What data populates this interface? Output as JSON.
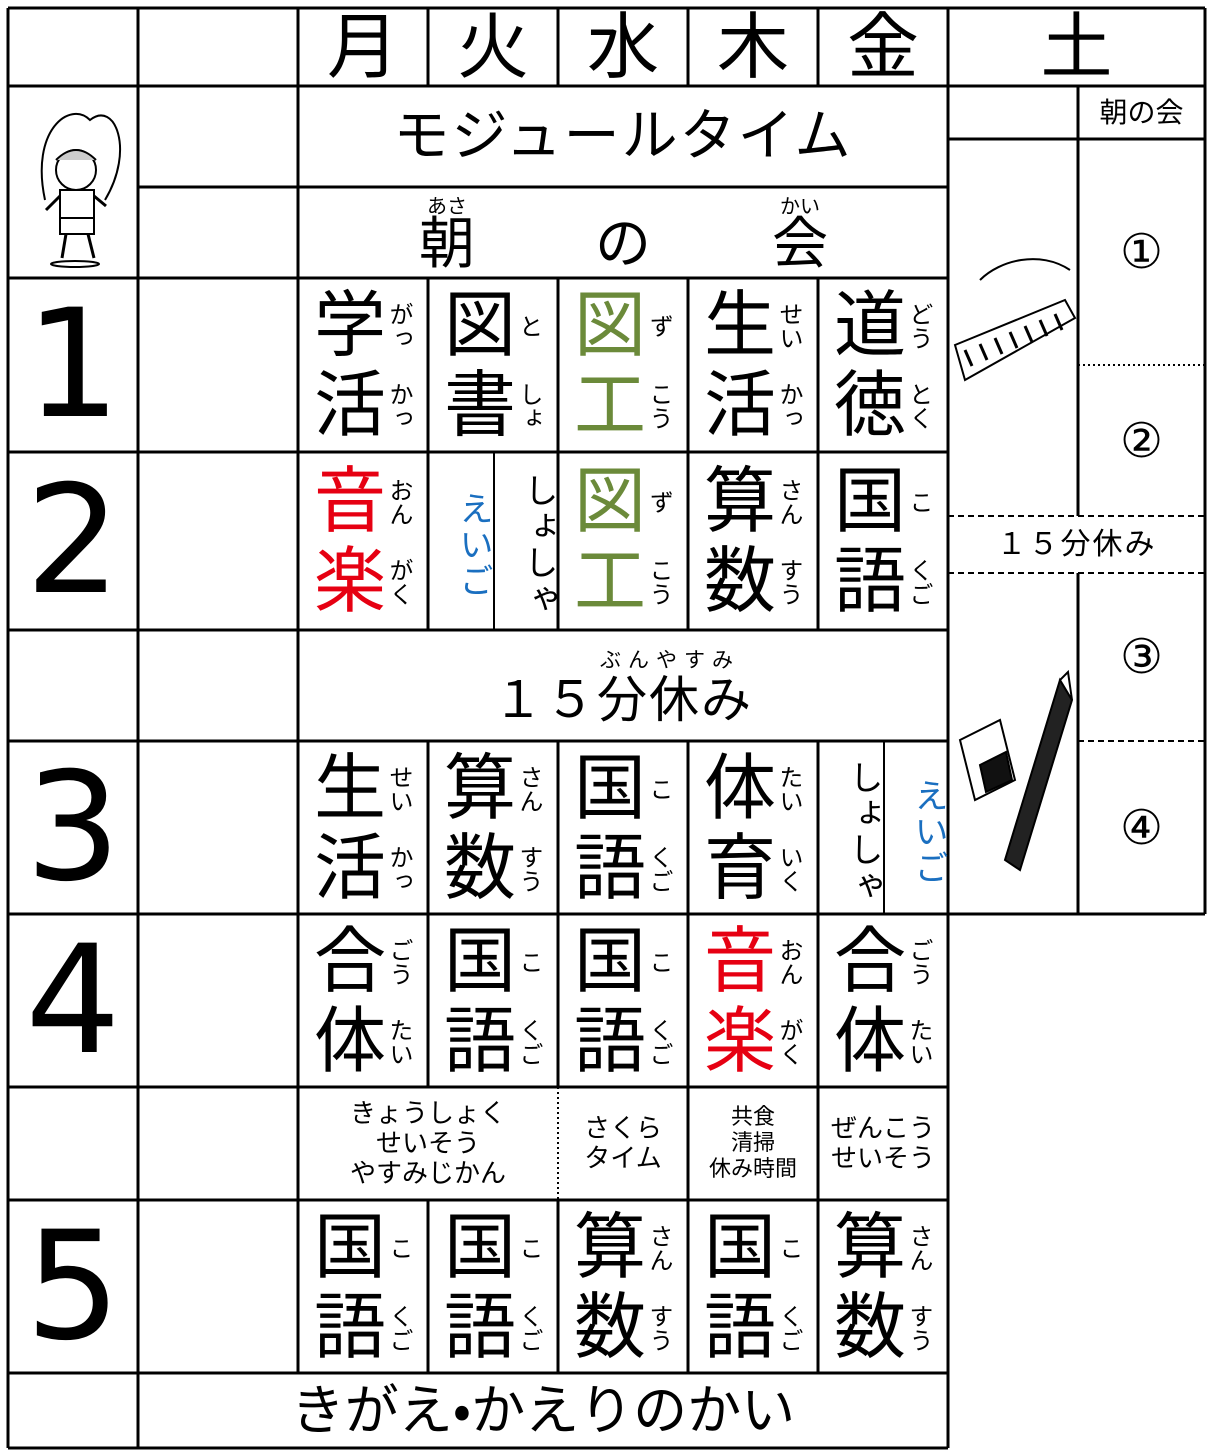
{
  "header": {
    "days": [
      "月",
      "火",
      "水",
      "木",
      "金",
      "土"
    ]
  },
  "module_time": "モジュールタイム",
  "morning_meeting": [
    {
      "text": "朝",
      "ruby": "あさ"
    },
    {
      "text": "の"
    },
    {
      "text": "会",
      "ruby": "かい"
    }
  ],
  "periods": [
    {
      "label": "1",
      "cells": [
        {
          "lines": [
            {
              "kanji": "学",
              "ruby": "がっ"
            },
            {
              "kanji": "活",
              "ruby": "かっ"
            }
          ]
        },
        {
          "lines": [
            {
              "kanji": "図",
              "ruby": "と"
            },
            {
              "kanji": "書",
              "ruby": "しょ"
            }
          ]
        },
        {
          "lines": [
            {
              "kanji": "図",
              "ruby": "ず"
            },
            {
              "kanji": "工",
              "ruby": "こう"
            }
          ],
          "color": "#6b8a3a"
        },
        {
          "lines": [
            {
              "kanji": "生",
              "ruby": "せい"
            },
            {
              "kanji": "活",
              "ruby": "かっ"
            }
          ]
        },
        {
          "lines": [
            {
              "kanji": "道",
              "ruby": "どう"
            },
            {
              "kanji": "徳",
              "ruby": "とく"
            }
          ]
        }
      ]
    },
    {
      "label": "2",
      "cells": [
        {
          "lines": [
            {
              "kanji": "音",
              "ruby": "おん"
            },
            {
              "kanji": "楽",
              "ruby": "がく"
            }
          ],
          "color": "#e60012"
        },
        {
          "split": [
            {
              "text": "えいご",
              "color": "#1a6fc0"
            },
            {
              "text": "しょしゃ"
            }
          ]
        },
        {
          "lines": [
            {
              "kanji": "図",
              "ruby": "ず"
            },
            {
              "kanji": "工",
              "ruby": "こう"
            }
          ],
          "color": "#6b8a3a"
        },
        {
          "lines": [
            {
              "kanji": "算",
              "ruby": "さん"
            },
            {
              "kanji": "数",
              "ruby": "すう"
            }
          ]
        },
        {
          "lines": [
            {
              "kanji": "国",
              "ruby": "こ"
            },
            {
              "kanji": "語",
              "ruby": "くご"
            }
          ]
        }
      ]
    },
    {
      "label": "3",
      "cells": [
        {
          "lines": [
            {
              "kanji": "生",
              "ruby": "せい"
            },
            {
              "kanji": "活",
              "ruby": "かっ"
            }
          ]
        },
        {
          "lines": [
            {
              "kanji": "算",
              "ruby": "さん"
            },
            {
              "kanji": "数",
              "ruby": "すう"
            }
          ]
        },
        {
          "lines": [
            {
              "kanji": "国",
              "ruby": "こ"
            },
            {
              "kanji": "語",
              "ruby": "くご"
            }
          ]
        },
        {
          "lines": [
            {
              "kanji": "体",
              "ruby": "たい"
            },
            {
              "kanji": "育",
              "ruby": "いく"
            }
          ]
        },
        {
          "split": [
            {
              "text": "しょしゃ"
            },
            {
              "text": "えいご",
              "color": "#1a6fc0"
            }
          ]
        }
      ]
    },
    {
      "label": "4",
      "cells": [
        {
          "lines": [
            {
              "kanji": "合",
              "ruby": "ごう"
            },
            {
              "kanji": "体",
              "ruby": "たい"
            }
          ]
        },
        {
          "lines": [
            {
              "kanji": "国",
              "ruby": "こ"
            },
            {
              "kanji": "語",
              "ruby": "くご"
            }
          ]
        },
        {
          "lines": [
            {
              "kanji": "国",
              "ruby": "こ"
            },
            {
              "kanji": "語",
              "ruby": "くご"
            }
          ]
        },
        {
          "lines": [
            {
              "kanji": "音",
              "ruby": "おん"
            },
            {
              "kanji": "楽",
              "ruby": "がく"
            }
          ],
          "color": "#e60012"
        },
        {
          "lines": [
            {
              "kanji": "合",
              "ruby": "ごう"
            },
            {
              "kanji": "体",
              "ruby": "たい"
            }
          ]
        }
      ]
    },
    {
      "label": "5",
      "cells": [
        {
          "lines": [
            {
              "kanji": "国",
              "ruby": "こ"
            },
            {
              "kanji": "語",
              "ruby": "くご"
            }
          ]
        },
        {
          "lines": [
            {
              "kanji": "国",
              "ruby": "こ"
            },
            {
              "kanji": "語",
              "ruby": "くご"
            }
          ]
        },
        {
          "lines": [
            {
              "kanji": "算",
              "ruby": "さん"
            },
            {
              "kanji": "数",
              "ruby": "すう"
            }
          ]
        },
        {
          "lines": [
            {
              "kanji": "国",
              "ruby": "こ"
            },
            {
              "kanji": "語",
              "ruby": "くご"
            }
          ]
        },
        {
          "lines": [
            {
              "kanji": "算",
              "ruby": "さん"
            },
            {
              "kanji": "数",
              "ruby": "すう"
            }
          ]
        }
      ]
    }
  ],
  "break": {
    "text": "１５分休み",
    "ruby": "ぶんやすみ"
  },
  "lunch": [
    {
      "lines": [
        "きょうしょく",
        "せいそう",
        "やすみじかん"
      ]
    },
    {
      "lines": [
        "さくら",
        "タイム"
      ]
    },
    {
      "lines": [
        "共食",
        "清掃",
        "休み時間"
      ]
    },
    {
      "lines": [
        "ぜんこう",
        "せいそう"
      ]
    }
  ],
  "saturday": {
    "morning": "朝の会",
    "slots": [
      "①",
      "②",
      "③",
      "④"
    ],
    "break": "１５分休み"
  },
  "dismissal": "きがえ・かえりのかい"
}
